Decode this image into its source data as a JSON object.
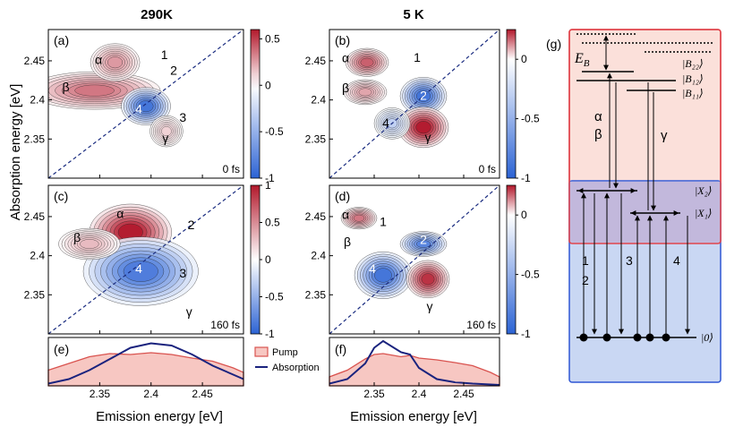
{
  "chart_data": {
    "type": "heatmap",
    "y_axis_label": "Absorption energy [eV]",
    "x_axis_label_left": "Emission energy [eV]",
    "x_axis_label_right": "Emission energy [eV]",
    "x_ticks": [
      "2.35",
      "2.4",
      "2.45"
    ],
    "x_tick_values": [
      2.35,
      2.4,
      2.45
    ],
    "y_ticks": [
      "2.45",
      "2.4",
      "2.35"
    ],
    "y_tick_values": [
      2.45,
      2.4,
      2.35
    ],
    "xlim": [
      2.3,
      2.49
    ],
    "ylim": [
      2.3,
      2.49
    ],
    "columns": [
      {
        "title": "290K"
      },
      {
        "title": "5 K"
      }
    ],
    "panels": [
      {
        "id": "a",
        "letter": "(a)",
        "time": "0 fs",
        "colorbar": {
          "ticks": [
            "0.5",
            "0",
            "-0.5",
            "-1"
          ],
          "tick_values": [
            0.5,
            0,
            -0.5,
            -1
          ],
          "min": -1,
          "max": 0.6
        },
        "labels": [
          {
            "text": "α",
            "x": 2.349,
            "y": 2.446
          },
          {
            "text": "β",
            "x": 2.317,
            "y": 2.411
          },
          {
            "text": "1",
            "x": 2.413,
            "y": 2.452
          },
          {
            "text": "2",
            "x": 2.422,
            "y": 2.432
          },
          {
            "text": "3",
            "x": 2.431,
            "y": 2.372
          },
          {
            "text": "γ",
            "x": 2.414,
            "y": 2.346
          },
          {
            "text": "4",
            "x": 2.388,
            "y": 2.383
          }
        ],
        "features": [
          {
            "x": 2.345,
            "y": 2.412,
            "sx": 0.032,
            "sy": 0.012,
            "a": 0.6
          },
          {
            "x": 2.365,
            "y": 2.448,
            "sx": 0.012,
            "sy": 0.012,
            "a": 0.45
          },
          {
            "x": 2.395,
            "y": 2.392,
            "sx": 0.012,
            "sy": 0.012,
            "a": -0.9
          },
          {
            "x": 2.415,
            "y": 2.36,
            "sx": 0.008,
            "sy": 0.01,
            "a": 0.2
          }
        ]
      },
      {
        "id": "b",
        "letter": "(b)",
        "time": "0 fs",
        "colorbar": {
          "ticks": [
            "0",
            "-0.5",
            "-1"
          ],
          "tick_values": [
            0,
            -0.5,
            -1
          ],
          "min": -1,
          "max": 0.25
        },
        "labels": [
          {
            "text": "α",
            "x": 2.318,
            "y": 2.448
          },
          {
            "text": "β",
            "x": 2.318,
            "y": 2.41
          },
          {
            "text": "1",
            "x": 2.398,
            "y": 2.449
          },
          {
            "text": "2",
            "x": 2.405,
            "y": 2.4
          },
          {
            "text": "4",
            "x": 2.363,
            "y": 2.365
          },
          {
            "text": "γ",
            "x": 2.41,
            "y": 2.347
          }
        ],
        "features": [
          {
            "x": 2.342,
            "y": 2.448,
            "sx": 0.012,
            "sy": 0.009,
            "a": 0.7
          },
          {
            "x": 2.34,
            "y": 2.41,
            "sx": 0.012,
            "sy": 0.008,
            "a": 0.4
          },
          {
            "x": 2.405,
            "y": 2.405,
            "sx": 0.013,
            "sy": 0.012,
            "a": -0.9
          },
          {
            "x": 2.405,
            "y": 2.365,
            "sx": 0.014,
            "sy": 0.013,
            "a": 1
          },
          {
            "x": 2.37,
            "y": 2.37,
            "sx": 0.01,
            "sy": 0.01,
            "a": -0.3
          }
        ]
      },
      {
        "id": "c",
        "letter": "(c)",
        "time": "160 fs",
        "colorbar": {
          "ticks": [
            "1",
            "0.5",
            "0",
            "-0.5",
            "-1"
          ],
          "tick_values": [
            1,
            0.5,
            0,
            -0.5,
            -1
          ],
          "min": -1,
          "max": 1
        },
        "labels": [
          {
            "text": "α",
            "x": 2.37,
            "y": 2.448
          },
          {
            "text": "β",
            "x": 2.328,
            "y": 2.418
          },
          {
            "text": "2",
            "x": 2.439,
            "y": 2.434
          },
          {
            "text": "3",
            "x": 2.431,
            "y": 2.372
          },
          {
            "text": "γ",
            "x": 2.437,
            "y": 2.323
          },
          {
            "text": "4",
            "x": 2.388,
            "y": 2.378
          }
        ],
        "features": [
          {
            "x": 2.38,
            "y": 2.43,
            "sx": 0.02,
            "sy": 0.018,
            "a": 1
          },
          {
            "x": 2.39,
            "y": 2.38,
            "sx": 0.028,
            "sy": 0.022,
            "a": -0.85
          },
          {
            "x": 2.34,
            "y": 2.415,
            "sx": 0.015,
            "sy": 0.01,
            "a": 0.3
          }
        ]
      },
      {
        "id": "d",
        "letter": "(d)",
        "time": "160 fs",
        "colorbar": {
          "ticks": [
            "0",
            "-0.5",
            "-1"
          ],
          "tick_values": [
            0,
            -0.5,
            -1
          ],
          "min": -1,
          "max": 0.25
        },
        "labels": [
          {
            "text": "α",
            "x": 2.318,
            "y": 2.447
          },
          {
            "text": "1",
            "x": 2.36,
            "y": 2.438
          },
          {
            "text": "β",
            "x": 2.32,
            "y": 2.412
          },
          {
            "text": "2",
            "x": 2.405,
            "y": 2.415
          },
          {
            "text": "4",
            "x": 2.348,
            "y": 2.378
          },
          {
            "text": "γ",
            "x": 2.412,
            "y": 2.33
          }
        ],
        "features": [
          {
            "x": 2.333,
            "y": 2.448,
            "sx": 0.01,
            "sy": 0.007,
            "a": 0.6
          },
          {
            "x": 2.405,
            "y": 2.415,
            "sx": 0.013,
            "sy": 0.008,
            "a": -0.8
          },
          {
            "x": 2.36,
            "y": 2.375,
            "sx": 0.016,
            "sy": 0.015,
            "a": -0.9
          },
          {
            "x": 2.41,
            "y": 2.37,
            "sx": 0.012,
            "sy": 0.012,
            "a": 0.9
          }
        ]
      }
    ],
    "spectra": [
      {
        "id": "e",
        "letter": "(e)",
        "emission_energy": [
          2.3,
          2.32,
          2.34,
          2.36,
          2.38,
          2.4,
          2.42,
          2.44,
          2.46,
          2.48,
          2.49
        ],
        "pump": [
          0.35,
          0.5,
          0.65,
          0.72,
          0.7,
          0.74,
          0.7,
          0.62,
          0.55,
          0.4,
          0.3
        ],
        "absorption": [
          0.05,
          0.15,
          0.35,
          0.6,
          0.85,
          0.95,
          0.9,
          0.7,
          0.45,
          0.25,
          0.15
        ]
      },
      {
        "id": "f",
        "letter": "(f)",
        "emission_energy": [
          2.3,
          2.32,
          2.34,
          2.35,
          2.36,
          2.38,
          2.39,
          2.4,
          2.42,
          2.44,
          2.46,
          2.48,
          2.49
        ],
        "pump": [
          0.2,
          0.35,
          0.6,
          0.7,
          0.72,
          0.65,
          0.68,
          0.62,
          0.58,
          0.52,
          0.45,
          0.3,
          0.2
        ],
        "absorption": [
          0.05,
          0.15,
          0.5,
          0.85,
          1,
          0.75,
          0.7,
          0.4,
          0.15,
          0.08,
          0.05,
          0.03,
          0.02
        ]
      }
    ],
    "legend": {
      "position": "between panels e and f",
      "items": [
        {
          "name": "Pump",
          "style": "filled"
        },
        {
          "name": "Absorption",
          "style": "line"
        }
      ]
    },
    "colors": {
      "positive": "#b2182b",
      "negative": "#2c63d4",
      "neutral": "#ffffff",
      "pump_fill": "#f7c7c2",
      "pump_line": "#d9534f",
      "absorption_line": "#1a237e",
      "diagonal": "#1a2c80",
      "band_B": "#fbe0da",
      "band_X": "#c9d7f3",
      "band_B_border": "#e0424a",
      "band_X_border": "#2f57d4"
    },
    "energy_diagram": {
      "letter": "(g)",
      "eb_label": "E",
      "eb_subscript": "B",
      "states_upper": [
        "|B₂₂⟩",
        "|B₁₂⟩",
        "|B₁₁⟩"
      ],
      "states_lower": [
        "|X₂⟩",
        "|X₁⟩"
      ],
      "ground": "|0⟩",
      "transition_labels": [
        "α",
        "β",
        "γ",
        "1",
        "2",
        "3",
        "4"
      ]
    }
  }
}
